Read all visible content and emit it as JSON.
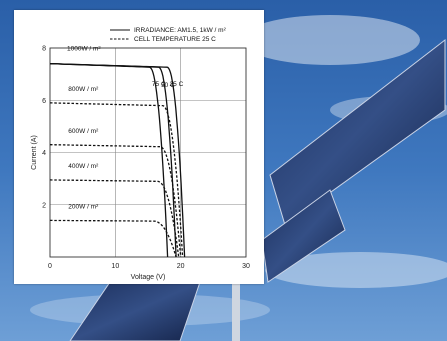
{
  "chart_data": {
    "type": "line",
    "xlabel": "Voltage (V)",
    "ylabel": "Current (A)",
    "xlim": [
      0,
      30
    ],
    "ylim": [
      0,
      8
    ],
    "x_ticks": [
      "0",
      "10",
      "20",
      "30"
    ],
    "y_ticks": [
      "2",
      "4",
      "6",
      "8"
    ],
    "grid": true,
    "legend_position": "top-right",
    "legend": [
      {
        "label": "IRRADIANCE: AM1.5, 1kW / m²",
        "style": "solid"
      },
      {
        "label": "CELL TEMPERATURE 25 C",
        "style": "dashed"
      }
    ],
    "irradiance_labels": [
      "1000W / m²",
      "800W / m²",
      "600W / m²",
      "400W / m²",
      "200W / m²"
    ],
    "temperature_labels": [
      "75 C",
      "50 C",
      "25 C"
    ],
    "series": [
      {
        "name": "75 C",
        "style": "solid",
        "isc": 7.4,
        "voc": 18.0,
        "knee": 15.2
      },
      {
        "name": "50 C",
        "style": "solid",
        "isc": 7.4,
        "voc": 19.3,
        "knee": 16.6
      },
      {
        "name": "25 C",
        "style": "solid",
        "isc": 7.4,
        "voc": 20.6,
        "knee": 17.9
      },
      {
        "name": "800W / m²",
        "style": "dashed",
        "isc": 5.9,
        "voc": 20.3,
        "knee": 17.2
      },
      {
        "name": "600W / m²",
        "style": "dashed",
        "isc": 4.3,
        "voc": 20.0,
        "knee": 16.8
      },
      {
        "name": "400W / m²",
        "style": "dashed",
        "isc": 2.95,
        "voc": 19.7,
        "knee": 16.4
      },
      {
        "name": "200W / m²",
        "style": "dashed",
        "isc": 1.4,
        "voc": 19.3,
        "knee": 15.8
      }
    ]
  }
}
